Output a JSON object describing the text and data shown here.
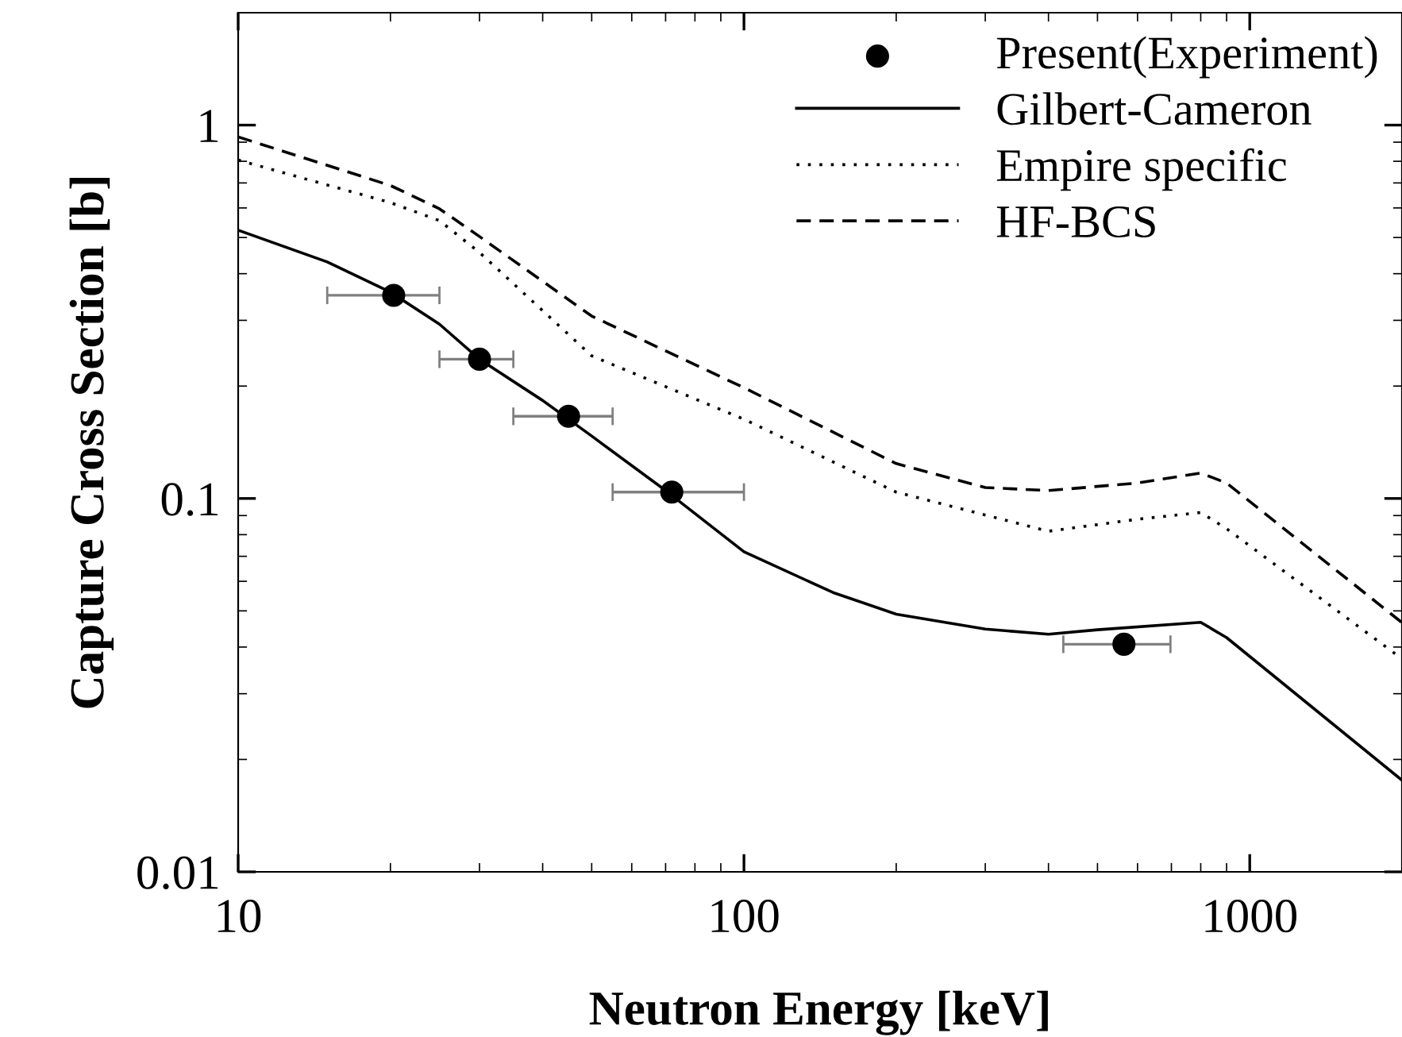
{
  "chart_data": {
    "type": "line",
    "xlabel": "Neutron Energy [keV]",
    "ylabel": "Capture Cross Section [b]",
    "log": "xy",
    "xlim": [
      10,
      2000
    ],
    "ylim": [
      0.01,
      2
    ],
    "xticks": [
      10,
      100,
      1000
    ],
    "yticks": [
      0.01,
      0.1,
      1
    ],
    "grid": false,
    "legend": "top right",
    "series": [
      {
        "name": "Present(Experiment)",
        "type": "scatter",
        "marker": "circle",
        "color": "#000000",
        "x": [
          20.3,
          30,
          45,
          72,
          564
        ],
        "values": [
          0.35,
          0.236,
          0.166,
          0.104,
          0.0407
        ],
        "xerrors": [
          [
            15,
            25
          ],
          [
            25,
            35
          ],
          [
            35,
            55
          ],
          [
            55,
            100
          ],
          [
            428,
            697
          ]
        ]
      },
      {
        "name": "Gilbert-Cameron",
        "line_style": "solid",
        "color": "#000000",
        "x": [
          10,
          15,
          20,
          25,
          30,
          40,
          50,
          70,
          100,
          150,
          200,
          300,
          400,
          500,
          800,
          900,
          2000
        ],
        "values": [
          0.523,
          0.43,
          0.357,
          0.293,
          0.236,
          0.183,
          0.147,
          0.105,
          0.072,
          0.056,
          0.049,
          0.0447,
          0.0433,
          0.0445,
          0.0466,
          0.0424,
          0.0176
        ]
      },
      {
        "name": "Empire specific",
        "line_style": "dotted",
        "color": "#000000",
        "x": [
          10,
          20,
          25,
          30,
          50,
          100,
          200,
          400,
          600,
          800,
          900,
          2000
        ],
        "values": [
          0.806,
          0.62,
          0.555,
          0.456,
          0.241,
          0.163,
          0.104,
          0.0817,
          0.088,
          0.0917,
          0.083,
          0.0372
        ]
      },
      {
        "name": "HF-BCS",
        "line_style": "dashed",
        "color": "#000000",
        "x": [
          10,
          20,
          25,
          30,
          50,
          100,
          200,
          300,
          400,
          600,
          800,
          900,
          2000
        ],
        "values": [
          0.93,
          0.689,
          0.597,
          0.503,
          0.308,
          0.198,
          0.124,
          0.107,
          0.105,
          0.11,
          0.117,
          0.11,
          0.0465
        ]
      }
    ]
  }
}
